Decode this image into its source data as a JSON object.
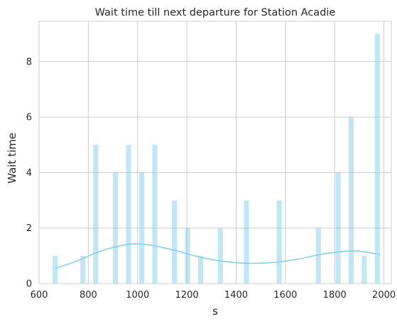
{
  "chart_data": {
    "type": "bar",
    "title": "Wait time till next departure for Station Acadie",
    "xlabel": "s",
    "ylabel": "Wait time",
    "xlim": [
      600,
      2030
    ],
    "ylim": [
      0,
      9.45
    ],
    "xticks": [
      600,
      800,
      1000,
      1200,
      1400,
      1600,
      1800,
      2000
    ],
    "yticks": [
      0,
      2,
      4,
      6,
      8
    ],
    "grid": true,
    "bin_width": 26.5,
    "bars": [
      {
        "x": 665,
        "value": 1
      },
      {
        "x": 778,
        "value": 1
      },
      {
        "x": 830,
        "value": 5
      },
      {
        "x": 910,
        "value": 4
      },
      {
        "x": 963,
        "value": 5
      },
      {
        "x": 1017,
        "value": 4
      },
      {
        "x": 1070,
        "value": 5
      },
      {
        "x": 1150,
        "value": 3
      },
      {
        "x": 1203,
        "value": 2
      },
      {
        "x": 1256,
        "value": 1
      },
      {
        "x": 1336,
        "value": 2
      },
      {
        "x": 1442,
        "value": 3
      },
      {
        "x": 1575,
        "value": 3
      },
      {
        "x": 1734,
        "value": 2
      },
      {
        "x": 1814,
        "value": 4
      },
      {
        "x": 1867,
        "value": 6
      },
      {
        "x": 1920,
        "value": 1
      },
      {
        "x": 1973,
        "value": 9
      }
    ],
    "kde": {
      "x": [
        665,
        750,
        850,
        950,
        1000,
        1050,
        1150,
        1250,
        1350,
        1450,
        1550,
        1650,
        1750,
        1850,
        1900,
        1950,
        1986
      ],
      "y": [
        0.55,
        0.8,
        1.17,
        1.4,
        1.43,
        1.39,
        1.2,
        0.96,
        0.8,
        0.73,
        0.76,
        0.88,
        1.06,
        1.17,
        1.17,
        1.1,
        1.05
      ]
    },
    "colors": {
      "bar": "#87ceeb",
      "kde": "#87ceeb",
      "grid": "#cccccc",
      "frame": "#cccccc"
    }
  }
}
